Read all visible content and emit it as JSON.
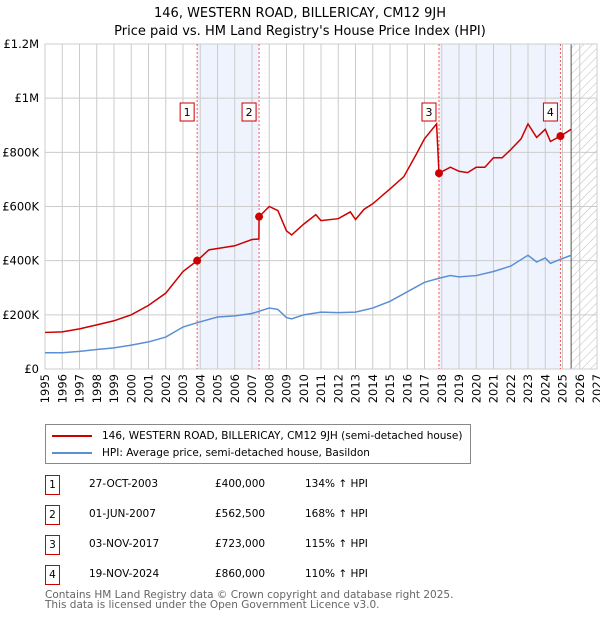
{
  "title": "146, WESTERN ROAD, BILLERICAY, CM12 9JH",
  "subtitle": "Price paid vs. HM Land Registry's House Price Index (HPI)",
  "colors": {
    "price": "#cc0000",
    "hpi": "#5b8fd4",
    "band": "#eef3fd"
  },
  "chart_data": {
    "type": "line",
    "xlim": [
      1995,
      2027
    ],
    "ylim": [
      0,
      1200000
    ],
    "yticks": [
      {
        "v": 0,
        "label": "£0"
      },
      {
        "v": 200000,
        "label": "£200K"
      },
      {
        "v": 400000,
        "label": "£400K"
      },
      {
        "v": 600000,
        "label": "£600K"
      },
      {
        "v": 800000,
        "label": "£800K"
      },
      {
        "v": 1000000,
        "label": "£1M"
      },
      {
        "v": 1200000,
        "label": "£1.2M"
      }
    ],
    "xticks": [
      "1995",
      "1996",
      "1997",
      "1998",
      "1999",
      "2000",
      "2001",
      "2002",
      "2003",
      "2004",
      "2005",
      "2006",
      "2007",
      "2008",
      "2009",
      "2010",
      "2011",
      "2012",
      "2013",
      "2014",
      "2015",
      "2016",
      "2017",
      "2018",
      "2019",
      "2020",
      "2021",
      "2022",
      "2023",
      "2024",
      "2025",
      "2026",
      "2027"
    ],
    "forecast_start": 2025.5,
    "series": [
      {
        "name": "146, WESTERN ROAD, BILLERICAY, CM12 9JH (semi-detached house)",
        "color": "#cc0000",
        "x": [
          1995,
          1996,
          1997,
          1998,
          1999,
          2000,
          2001,
          2002,
          2003,
          2003.82,
          2004.5,
          2005,
          2006,
          2007,
          2007.4,
          2007.41,
          2008,
          2008.5,
          2009,
          2009.3,
          2010,
          2010.7,
          2011,
          2012,
          2012.7,
          2013,
          2013.5,
          2014,
          2015,
          2015.8,
          2016.5,
          2017,
          2017.7,
          2017.84,
          2018.5,
          2019,
          2019.5,
          2020,
          2020.5,
          2021,
          2021.5,
          2022,
          2022.6,
          2023,
          2023.5,
          2024,
          2024.3,
          2024.88,
          2025.5
        ],
        "y": [
          135000,
          137000,
          148000,
          163000,
          178000,
          200000,
          235000,
          280000,
          360000,
          400000,
          440000,
          445000,
          455000,
          478000,
          480000,
          562500,
          600000,
          585000,
          510000,
          495000,
          535000,
          570000,
          548000,
          555000,
          580000,
          552000,
          590000,
          610000,
          665000,
          710000,
          790000,
          850000,
          905000,
          723000,
          745000,
          730000,
          725000,
          745000,
          745000,
          780000,
          780000,
          810000,
          850000,
          905000,
          855000,
          885000,
          840000,
          860000,
          885000
        ]
      },
      {
        "name": "HPI: Average price, semi-detached house, Basildon",
        "color": "#5b8fd4",
        "x": [
          1995,
          1996,
          1997,
          1998,
          1999,
          2000,
          2001,
          2002,
          2003,
          2003.82,
          2005,
          2006,
          2007,
          2008,
          2008.5,
          2009,
          2009.3,
          2010,
          2011,
          2012,
          2013,
          2014,
          2015,
          2016,
          2017,
          2017.84,
          2018.5,
          2019,
          2020,
          2021,
          2022,
          2023,
          2023.5,
          2024,
          2024.3,
          2024.88,
          2025.5
        ],
        "y": [
          60000,
          60000,
          65000,
          72000,
          78000,
          88000,
          100000,
          118000,
          155000,
          171000,
          192000,
          196000,
          205000,
          225000,
          220000,
          190000,
          185000,
          200000,
          210000,
          208000,
          210000,
          225000,
          250000,
          285000,
          320000,
          335000,
          345000,
          340000,
          345000,
          360000,
          380000,
          420000,
          395000,
          410000,
          390000,
          405000,
          420000
        ]
      }
    ],
    "sales": [
      {
        "n": "1",
        "x": 2003.82,
        "y": 400000,
        "date": "27-OCT-2003",
        "price": "£400,000",
        "hpi": "134% ↑ HPI"
      },
      {
        "n": "2",
        "x": 2007.41,
        "y": 562500,
        "date": "01-JUN-2007",
        "price": "£562,500",
        "hpi": "168% ↑ HPI"
      },
      {
        "n": "3",
        "x": 2017.84,
        "y": 723000,
        "date": "03-NOV-2017",
        "price": "£723,000",
        "hpi": "115% ↑ HPI"
      },
      {
        "n": "4",
        "x": 2024.88,
        "y": 860000,
        "date": "19-NOV-2024",
        "price": "£860,000",
        "hpi": "110% ↑ HPI"
      }
    ]
  },
  "footer": [
    "Contains HM Land Registry data © Crown copyright and database right 2025.",
    "This data is licensed under the Open Government Licence v3.0."
  ]
}
